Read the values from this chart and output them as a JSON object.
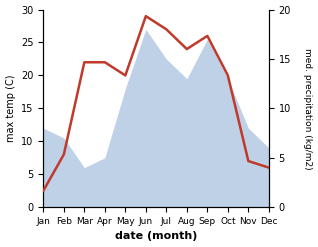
{
  "months": [
    "Jan",
    "Feb",
    "Mar",
    "Apr",
    "May",
    "Jun",
    "Jul",
    "Aug",
    "Sep",
    "Oct",
    "Nov",
    "Dec"
  ],
  "temperature": [
    2.5,
    8.0,
    22.0,
    22.0,
    20.0,
    29.0,
    27.0,
    24.0,
    26.0,
    20.0,
    7.0,
    6.0
  ],
  "precipitation": [
    8.0,
    7.0,
    4.0,
    5.0,
    12.0,
    18.0,
    15.0,
    13.0,
    17.0,
    13.0,
    8.0,
    6.0
  ],
  "temp_color": "#c0392b",
  "precip_color": "#b8cce4",
  "temp_ylim": [
    0,
    30
  ],
  "precip_ylim": [
    0,
    20
  ],
  "temp_yticks": [
    0,
    5,
    10,
    15,
    20,
    25,
    30
  ],
  "precip_yticks": [
    0,
    5,
    10,
    15,
    20
  ],
  "xlabel": "date (month)",
  "ylabel_left": "max temp (C)",
  "ylabel_right": "med. precipitation (kg/m2)"
}
